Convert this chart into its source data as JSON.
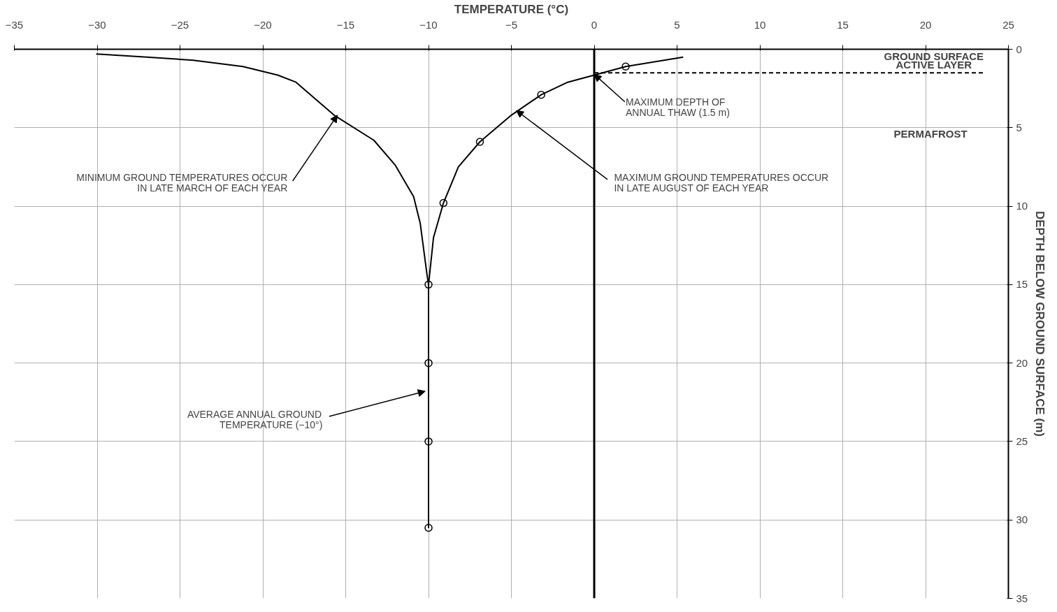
{
  "chart_data": {
    "type": "line",
    "xlabel": "TEMPERATURE (°C)",
    "ylabel": "DEPTH BELOW GROUND SURFACE (m)",
    "xlim": [
      -35,
      25
    ],
    "ylim": [
      35,
      0
    ],
    "xticks": [
      -35,
      -30,
      -25,
      -20,
      -15,
      -10,
      -5,
      0,
      5,
      10,
      15,
      20,
      25
    ],
    "yticks": [
      0,
      5,
      10,
      15,
      20,
      25,
      30,
      35
    ],
    "grid": true,
    "series": [
      {
        "color": "#000000",
        "x": [
          -30.06,
          -27.0,
          -24.2,
          -21.2,
          -19.1,
          -18.0,
          -15.7,
          -13.3,
          -12.0,
          -10.9,
          -10.5,
          -10.1,
          -10.0,
          -10.0,
          -10.0
        ],
        "values": [
          0.3,
          0.5,
          0.7,
          1.1,
          1.65,
          2.1,
          4.2,
          5.8,
          7.4,
          9.4,
          11.1,
          14.3,
          15.0,
          25.0,
          30.5
        ]
      },
      {
        "color": "#000000",
        "x": [
          5.37,
          1.9,
          0.0,
          -1.6,
          -3.2,
          -5.0,
          -6.9,
          -8.2,
          -9.1,
          -9.7,
          -10.0,
          -10.0,
          -10.0,
          -10.0
        ],
        "values": [
          0.5,
          1.1,
          1.65,
          2.1,
          2.9,
          4.2,
          5.9,
          7.5,
          9.8,
          12.0,
          15.0,
          20.0,
          25.0,
          30.5
        ]
      },
      {
        "type": "scatter",
        "marker": "circle",
        "color": "#000000",
        "x": [
          1.9,
          -3.2,
          -6.9,
          -9.1,
          -10.0,
          -10.0,
          -10.0,
          -10.0
        ],
        "values": [
          1.1,
          2.9,
          5.9,
          9.8,
          15.0,
          20.0,
          25.0,
          30.5
        ]
      },
      {
        "type": "line",
        "line_style": "dashed",
        "color": "#000000",
        "x": [
          0,
          23.5
        ],
        "values": [
          1.5,
          1.5
        ]
      }
    ],
    "ref_lines": [
      {
        "axis": "x",
        "value": 0,
        "color": "#000000"
      }
    ],
    "annotations": [
      "GROUND SURFACE",
      "ACTIVE LAYER",
      "PERMAFROST",
      {
        "text": "MAXIMUM DEPTH OF\nANNUAL THAW (1.5 m)",
        "x": 0,
        "y": 1.6
      },
      {
        "text": "MAXIMUM GROUND TEMPERATURES OCCUR\nIN LATE AUGUST OF EACH YEAR",
        "x": -4.7,
        "y": 3.9
      },
      {
        "text": "MINIMUM GROUND TEMPERATURES OCCUR\nIN LATE MARCH OF EACH YEAR",
        "x": -15.5,
        "y": 4.2
      },
      {
        "text": "AVERAGE ANNUAL GROUND\nTEMPERATURE (−10°)",
        "x": -10.2,
        "y": 21.8
      }
    ]
  }
}
